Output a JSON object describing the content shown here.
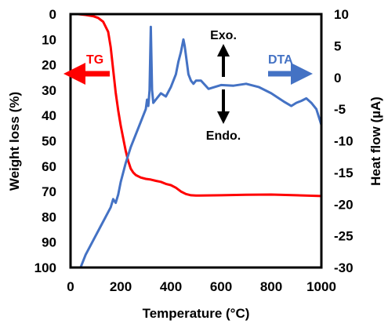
{
  "chart_data": {
    "type": "line",
    "xlabel": "Temperature (°C)",
    "ylabel_left": "Weight loss (%)",
    "ylabel_right": "Heat flow (µA)",
    "xlim": [
      0,
      1000
    ],
    "ylim_left": [
      0,
      100
    ],
    "ylim_right": [
      -30,
      10
    ],
    "left_axis_inverted": true,
    "grid": false,
    "xticks": [
      "0",
      "200",
      "400",
      "600",
      "800",
      "1000"
    ],
    "yticks_left": [
      "0",
      "10",
      "20",
      "30",
      "40",
      "50",
      "60",
      "70",
      "80",
      "90",
      "100"
    ],
    "yticks_right": [
      "10",
      "5",
      "0",
      "-5",
      "-10",
      "-15",
      "-20",
      "-25",
      "-30"
    ],
    "series": [
      {
        "name": "TG",
        "axis": "left",
        "color": "#ff0000",
        "x": [
          30,
          60,
          90,
          110,
          130,
          150,
          160,
          170,
          180,
          190,
          200,
          210,
          220,
          230,
          240,
          250,
          260,
          280,
          300,
          320,
          340,
          360,
          380,
          400,
          420,
          440,
          460,
          480,
          500,
          600,
          700,
          800,
          900,
          1000
        ],
        "y": [
          0,
          0.3,
          0.8,
          1.5,
          3,
          7,
          13,
          22,
          31,
          38,
          44,
          49,
          54,
          58,
          61,
          62.5,
          63.5,
          64.5,
          65,
          65.3,
          65.8,
          66.2,
          67,
          67.5,
          68.5,
          70,
          71,
          71.5,
          71.6,
          71.5,
          71.3,
          71.2,
          71.5,
          71.8
        ]
      },
      {
        "name": "DTA",
        "axis": "right",
        "color": "#4472c4",
        "x": [
          40,
          60,
          80,
          100,
          120,
          140,
          160,
          170,
          180,
          190,
          200,
          210,
          220,
          240,
          260,
          280,
          300,
          305,
          310,
          315,
          320,
          325,
          330,
          340,
          360,
          380,
          400,
          420,
          430,
          440,
          450,
          455,
          460,
          470,
          480,
          490,
          500,
          520,
          550,
          600,
          650,
          700,
          750,
          800,
          850,
          880,
          900,
          920,
          940,
          960,
          980,
          1000
        ],
        "y": [
          -30,
          -28,
          -26.5,
          -25,
          -23.5,
          -22,
          -20.5,
          -19.2,
          -19.8,
          -18.5,
          -16.5,
          -15,
          -13.5,
          -11,
          -9,
          -7,
          -5,
          -3.5,
          -4.5,
          -2,
          8,
          -2,
          -4,
          -3.5,
          -2.5,
          -3,
          -1.5,
          0.5,
          2.5,
          4,
          6,
          5,
          3.5,
          0.5,
          -0.5,
          -1,
          -0.5,
          -0.5,
          -1.8,
          -1.2,
          -1.3,
          -1,
          -1.5,
          -2.5,
          -3.8,
          -4.5,
          -4,
          -3.7,
          -3.3,
          -4,
          -5,
          -7.5
        ]
      }
    ],
    "annotations": {
      "tg_label": "TG",
      "dta_label": "DTA",
      "exo_label": "Exo.",
      "endo_label": "Endo."
    }
  }
}
